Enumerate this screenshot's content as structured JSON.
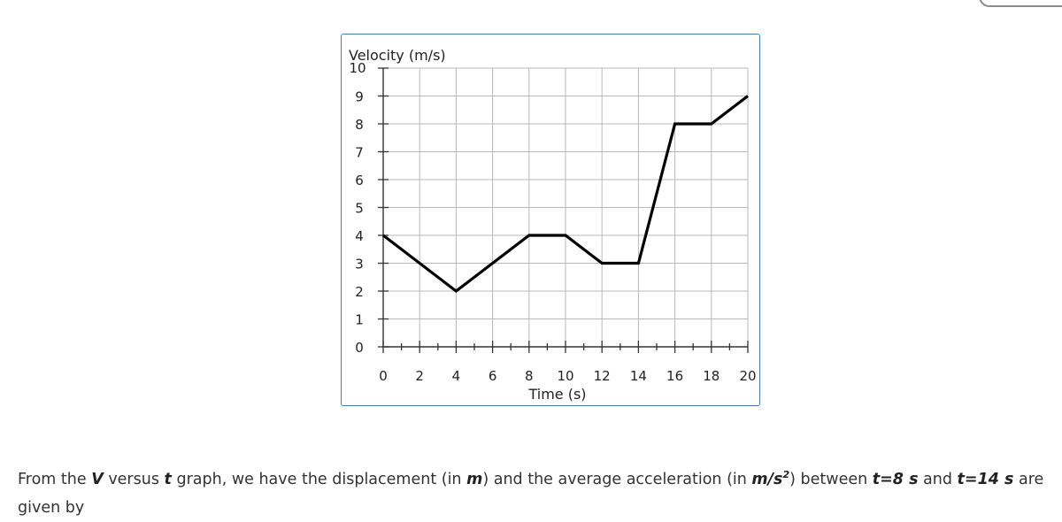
{
  "chart_data": {
    "type": "line",
    "ylabel": "Velocity (m/s)",
    "xlabel": "Time (s)",
    "xlim": [
      0,
      20
    ],
    "ylim": [
      0,
      10
    ],
    "x_ticks": [
      0,
      2,
      4,
      6,
      8,
      10,
      12,
      14,
      16,
      18,
      20
    ],
    "x_tick_labels": [
      "0",
      "2",
      "4",
      "6",
      "8",
      "10",
      "12",
      "14",
      "16",
      "18",
      "20"
    ],
    "y_ticks": [
      0,
      1,
      2,
      3,
      4,
      5,
      6,
      7,
      8,
      9,
      10
    ],
    "y_tick_labels": [
      "0",
      "1",
      "2",
      "3",
      "4",
      "5",
      "6",
      "7",
      "8",
      "9",
      "10"
    ],
    "grid": true,
    "series": [
      {
        "x": [
          0,
          4,
          8,
          10,
          12,
          14,
          16,
          18,
          20
        ],
        "y": [
          4,
          2,
          4,
          4,
          3,
          3,
          8,
          8,
          9
        ],
        "color": "#000000"
      }
    ]
  },
  "question": {
    "p1": "From the ",
    "v": "V",
    "p2": " versus ",
    "t": "t",
    "p3": " graph, we have the displacement (in ",
    "m": "m",
    "p4": ") and the average acceleration (in ",
    "unit": "m/s",
    "sup": "2",
    "p5": ") between ",
    "t1": "t=8 s",
    "p6": " and ",
    "t2": "t=14 s",
    "p7": " are given by"
  }
}
